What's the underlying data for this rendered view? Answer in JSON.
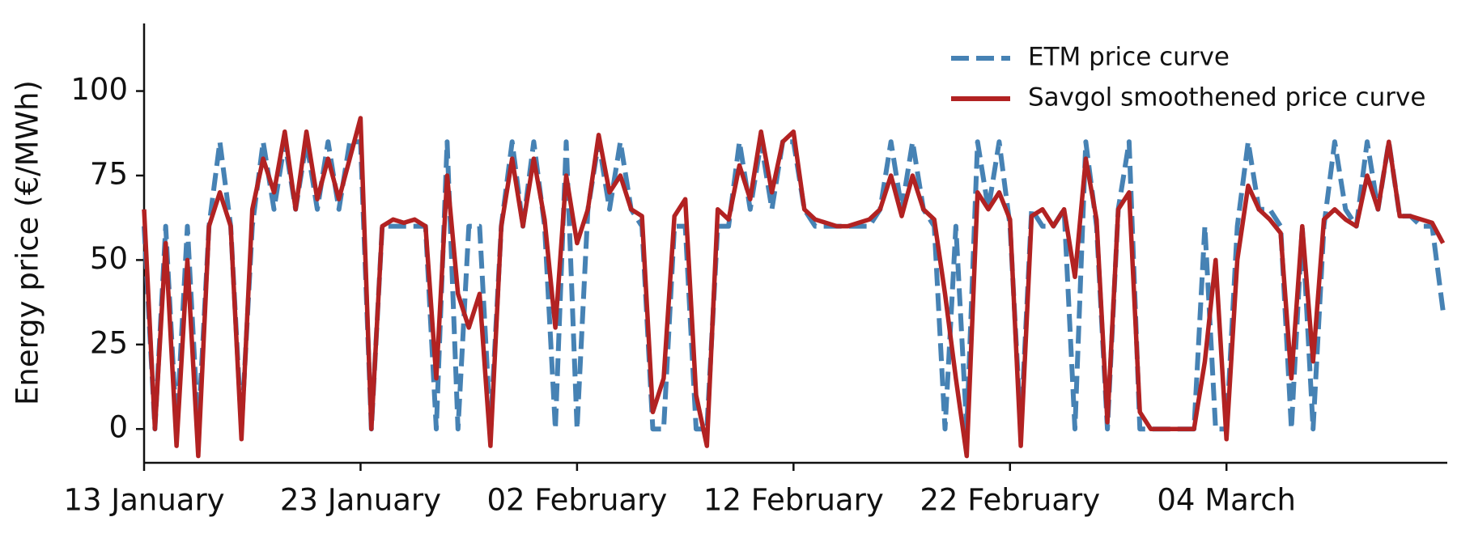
{
  "chart_data": {
    "type": "line",
    "y_label": "Energy price (€/MWh)",
    "x": [
      0,
      0.5,
      1,
      1.5,
      2,
      2.5,
      3,
      3.5,
      4,
      4.5,
      5,
      5.5,
      6,
      6.5,
      7,
      7.5,
      8,
      8.5,
      9,
      9.5,
      10,
      10.5,
      11,
      11.5,
      12,
      12.5,
      13,
      13.5,
      14,
      14.5,
      15,
      15.5,
      16,
      16.5,
      17,
      17.5,
      18,
      18.5,
      19,
      19.5,
      20,
      20.5,
      21,
      21.5,
      22,
      22.5,
      23,
      23.5,
      24,
      24.5,
      25,
      25.5,
      26,
      26.5,
      27,
      27.5,
      28,
      28.5,
      29,
      29.5,
      30,
      30.5,
      31,
      31.5,
      32,
      32.5,
      33,
      33.5,
      34,
      34.5,
      35,
      35.5,
      36,
      36.5,
      37,
      37.5,
      38,
      38.5,
      39,
      39.5,
      40,
      40.5,
      41,
      41.5,
      42,
      42.5,
      43,
      43.5,
      44,
      44.5,
      45,
      45.5,
      46,
      46.5,
      47,
      47.5,
      48,
      48.5,
      49,
      49.5,
      50,
      50.5,
      51,
      51.5,
      52,
      52.5,
      53,
      53.5,
      54,
      54.5,
      55,
      55.5,
      56,
      56.5,
      57,
      57.5,
      58,
      58.5,
      59,
      59.5,
      60
    ],
    "series": [
      {
        "name": "ETM price curve",
        "color": "#4682b4",
        "dash": true,
        "values": [
          60,
          0,
          60,
          0,
          60,
          0,
          60,
          85,
          60,
          0,
          60,
          85,
          65,
          85,
          65,
          85,
          65,
          85,
          65,
          85,
          85,
          0,
          60,
          60,
          60,
          60,
          60,
          0,
          85,
          0,
          60,
          60,
          0,
          60,
          85,
          60,
          85,
          60,
          0,
          85,
          0,
          65,
          85,
          65,
          85,
          65,
          60,
          0,
          0,
          60,
          60,
          0,
          0,
          60,
          60,
          85,
          65,
          85,
          65,
          85,
          85,
          65,
          60,
          60,
          60,
          60,
          60,
          60,
          65,
          85,
          65,
          85,
          65,
          60,
          0,
          60,
          0,
          85,
          65,
          85,
          60,
          0,
          65,
          60,
          60,
          65,
          0,
          85,
          60,
          0,
          65,
          85,
          0,
          0,
          0,
          0,
          0,
          0,
          60,
          0,
          0,
          60,
          85,
          65,
          65,
          60,
          0,
          60,
          0,
          60,
          85,
          65,
          60,
          85,
          65,
          85,
          63,
          63,
          60,
          60,
          35
        ]
      },
      {
        "name": "Savgol smoothened price curve",
        "color": "#b22222",
        "dash": false,
        "values": [
          65,
          0,
          55,
          -5,
          50,
          -8,
          60,
          70,
          60,
          -3,
          65,
          80,
          70,
          88,
          65,
          88,
          68,
          80,
          68,
          80,
          92,
          0,
          60,
          62,
          61,
          62,
          60,
          15,
          75,
          40,
          30,
          40,
          -5,
          60,
          80,
          60,
          80,
          62,
          30,
          75,
          55,
          65,
          87,
          70,
          75,
          65,
          63,
          5,
          15,
          63,
          68,
          10,
          -5,
          65,
          62,
          78,
          68,
          88,
          70,
          85,
          88,
          65,
          62,
          61,
          60,
          60,
          61,
          62,
          65,
          75,
          63,
          75,
          65,
          62,
          40,
          15,
          -8,
          70,
          65,
          70,
          62,
          -5,
          63,
          65,
          60,
          65,
          45,
          80,
          62,
          2,
          65,
          70,
          5,
          0,
          0,
          0,
          0,
          0,
          20,
          50,
          -3,
          50,
          72,
          65,
          62,
          58,
          15,
          60,
          20,
          62,
          65,
          62,
          60,
          75,
          65,
          85,
          63,
          63,
          62,
          61,
          55
        ]
      }
    ],
    "xlim": [
      0,
      60.2
    ],
    "xticks": [
      {
        "value": 0,
        "label": "13 January"
      },
      {
        "value": 10,
        "label": "23 January"
      },
      {
        "value": 20,
        "label": "02 February"
      },
      {
        "value": 30,
        "label": "12 February"
      },
      {
        "value": 40,
        "label": "22 February"
      },
      {
        "value": 50,
        "label": "04 March"
      }
    ],
    "ylim": [
      -10,
      120
    ],
    "yticks": [
      0,
      25,
      50,
      75,
      100
    ],
    "legend": "upper right"
  }
}
